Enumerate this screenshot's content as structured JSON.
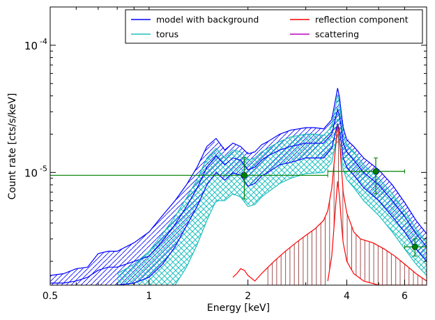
{
  "chart_data": {
    "type": "line",
    "xlabel": "Energy [keV]",
    "ylabel": "Count rate [cts/s/keV]",
    "x_scale": "log",
    "y_scale": "log",
    "xlim": [
      0.5,
      7.0
    ],
    "ylim": [
      1.3e-06,
      0.0002
    ],
    "x_ticks": [
      {
        "value": 0.5,
        "label": "0.5"
      },
      {
        "value": 1,
        "label": "1"
      },
      {
        "value": 2,
        "label": "2"
      },
      {
        "value": 4,
        "label": "4"
      },
      {
        "value": 6,
        "label": "6"
      }
    ],
    "y_ticks": [
      {
        "value": 1e-05,
        "base": "10",
        "exp": "-5"
      },
      {
        "value": 0.0001,
        "base": "10",
        "exp": "-4"
      }
    ],
    "legend_position": "top-right",
    "legend": [
      {
        "label": "model with background",
        "color": "#0000ff"
      },
      {
        "label": "reflection component",
        "color": "#ff0000"
      },
      {
        "label": "torus",
        "color": "#1fbfbf"
      },
      {
        "label": "scattering",
        "color": "#bf00bf"
      }
    ],
    "series": [
      {
        "name": "model with background",
        "color": "#0000ff",
        "bands": [
          {
            "x": [
              0.5,
              0.55,
              0.6,
              0.65,
              0.7,
              0.75,
              0.8,
              0.9,
              1.0,
              1.1,
              1.2,
              1.3,
              1.4,
              1.5,
              1.6,
              1.7,
              1.8,
              1.9,
              2.0,
              2.1,
              2.2,
              2.3,
              2.5,
              2.7,
              3.0,
              3.2,
              3.4,
              3.6,
              3.7,
              3.75,
              3.8,
              3.85,
              3.9,
              4.0,
              4.2,
              4.5,
              5.0,
              5.5,
              6.0,
              6.5,
              7.0
            ],
            "y": [
              1.55e-06,
              1.6e-06,
              1.75e-06,
              1.8e-06,
              2.3e-06,
              2.4e-06,
              2.4e-06,
              2.8e-06,
              3.4e-06,
              4.6e-06,
              6e-06,
              8e-06,
              1.1e-05,
              1.6e-05,
              1.85e-05,
              1.5e-05,
              1.7e-05,
              1.6e-05,
              1.4e-05,
              1.45e-05,
              1.65e-05,
              1.75e-05,
              2e-05,
              2.15e-05,
              2.25e-05,
              2.25e-05,
              2.2e-05,
              2.6e-05,
              3.8e-05,
              4.6e-05,
              3.9e-05,
              2.9e-05,
              2.25e-05,
              1.8e-05,
              1.6e-05,
              1.3e-05,
              1.05e-05,
              8e-06,
              5.8e-06,
              4.2e-06,
              3.3e-06
            ]
          },
          {
            "x": [
              0.5,
              0.55,
              0.6,
              0.65,
              0.7,
              0.75,
              0.8,
              0.9,
              1.0,
              1.1,
              1.2,
              1.3,
              1.4,
              1.5,
              1.6,
              1.7,
              1.8,
              1.9,
              2.0,
              2.1,
              2.2,
              2.3,
              2.5,
              2.7,
              3.0,
              3.2,
              3.4,
              3.6,
              3.7,
              3.75,
              3.8,
              3.85,
              3.9,
              4.0,
              4.2,
              4.5,
              5.0,
              5.5,
              6.0,
              6.5,
              7.0
            ],
            "y": [
              1.35e-06,
              1.35e-06,
              1.4e-06,
              1.5e-06,
              1.7e-06,
              1.8e-06,
              1.8e-06,
              2e-06,
              2.2e-06,
              2.9e-06,
              3.9e-06,
              5.4e-06,
              7.5e-06,
              1.1e-05,
              1.35e-05,
              1.15e-05,
              1.3e-05,
              1.25e-05,
              1.05e-05,
              1.1e-05,
              1.25e-05,
              1.35e-05,
              1.5e-05,
              1.6e-05,
              1.7e-05,
              1.7e-05,
              1.7e-05,
              2e-05,
              2.7e-05,
              3.1e-05,
              2.8e-05,
              2.2e-05,
              1.7e-05,
              1.45e-05,
              1.25e-05,
              1e-05,
              8e-06,
              6e-06,
              4.5e-06,
              3.3e-06,
              2.6e-06
            ]
          },
          {
            "x": [
              0.8,
              0.9,
              1.0,
              1.1,
              1.2,
              1.3,
              1.4,
              1.5,
              1.6,
              1.7,
              1.8,
              1.9,
              2.0,
              2.1,
              2.2,
              2.3,
              2.5,
              2.7,
              3.0,
              3.2,
              3.4,
              3.6,
              3.7,
              3.75,
              3.8,
              3.85,
              3.9,
              4.0,
              4.2,
              4.5,
              5.0,
              5.5,
              6.0,
              6.5,
              7.0
            ],
            "y": [
              1.3e-06,
              1.35e-06,
              1.5e-06,
              1.9e-06,
              2.6e-06,
              3.8e-06,
              5.4e-06,
              8e-06,
              1e-05,
              8.7e-06,
              9.9e-06,
              9.5e-06,
              7.8e-06,
              8.2e-06,
              9.4e-06,
              1e-05,
              1.15e-05,
              1.2e-05,
              1.3e-05,
              1.3e-05,
              1.3e-05,
              1.55e-05,
              2.1e-05,
              2.4e-05,
              2.15e-05,
              1.7e-05,
              1.3e-05,
              1.1e-05,
              9.5e-06,
              7.6e-06,
              6e-06,
              4.5e-06,
              3.4e-06,
              2.5e-06,
              2e-06
            ]
          }
        ]
      },
      {
        "name": "torus",
        "color": "#1fbfbf",
        "bands": [
          {
            "x": [
              0.8,
              0.9,
              1.0,
              1.1,
              1.2,
              1.3,
              1.4,
              1.5,
              1.6,
              1.7,
              1.8,
              1.9,
              2.0,
              2.1,
              2.2,
              2.3,
              2.5,
              2.7,
              3.0,
              3.2,
              3.4,
              3.6,
              3.7,
              3.75,
              3.8,
              3.85,
              3.9,
              4.0,
              4.2,
              4.5,
              5.0,
              5.5,
              6.0,
              6.5,
              7.0
            ],
            "y": [
              1.6e-06,
              1.9e-06,
              2.4e-06,
              3.3e-06,
              4.5e-06,
              6.3e-06,
              8.8e-06,
              1.3e-05,
              1.55e-05,
              1.3e-05,
              1.5e-05,
              1.45e-05,
              1.25e-05,
              1.3e-05,
              1.45e-05,
              1.55e-05,
              1.75e-05,
              1.9e-05,
              2e-05,
              2e-05,
              1.95e-05,
              2.3e-05,
              3.3e-05,
              4.1e-05,
              3.5e-05,
              2.6e-05,
              2e-05,
              1.65e-05,
              1.45e-05,
              1.15e-05,
              9e-06,
              6.8e-06,
              5e-06,
              3.6e-06,
              2.8e-06
            ]
          },
          {
            "x": [
              1.2,
              1.3,
              1.4,
              1.5,
              1.6,
              1.7,
              1.8,
              1.9,
              2.0,
              2.1,
              2.2,
              2.3,
              2.5,
              2.7,
              3.0,
              3.2,
              3.4,
              3.6,
              3.7,
              3.75,
              3.8,
              3.85,
              3.9,
              4.0,
              4.2,
              4.5,
              5.0,
              5.5,
              6.0,
              6.5,
              7.0
            ],
            "y": [
              1.3e-06,
              1.8e-06,
              2.7e-06,
              4.2e-06,
              6e-06,
              6e-06,
              6.8e-06,
              6.4e-06,
              5.4e-06,
              5.6e-06,
              6.4e-06,
              7e-06,
              8.2e-06,
              9e-06,
              9.8e-06,
              9.9e-06,
              1e-05,
              1.2e-05,
              1.7e-05,
              2e-05,
              1.75e-05,
              1.35e-05,
              1.05e-05,
              8.8e-06,
              7.6e-06,
              6e-06,
              4.6e-06,
              3.4e-06,
              2.5e-06,
              1.9e-06,
              1.55e-06
            ]
          }
        ]
      },
      {
        "name": "reflection component",
        "color": "#ff0000",
        "bands": [
          {
            "x": [
              1.8,
              1.85,
              1.9,
              1.95,
              2.0,
              2.1,
              2.2,
              2.4,
              2.6,
              2.8,
              3.0,
              3.2,
              3.4,
              3.5,
              3.6,
              3.7,
              3.75,
              3.8,
              3.85,
              3.9,
              4.0,
              4.2,
              4.4,
              4.8,
              5.2,
              5.6,
              6.0,
              6.5,
              7.0
            ],
            "y": [
              1.5e-06,
              1.6e-06,
              1.75e-06,
              1.7e-06,
              1.55e-06,
              1.4e-06,
              1.6e-06,
              2e-06,
              2.4e-06,
              2.8e-06,
              3.2e-06,
              3.6e-06,
              4.2e-06,
              5e-06,
              7.5e-06,
              1.6e-05,
              2.4e-05,
              1.8e-05,
              1.1e-05,
              7e-06,
              4.8e-06,
              3.4e-06,
              3e-06,
              2.8e-06,
              2.5e-06,
              2.2e-06,
              1.9e-06,
              1.6e-06,
              1.4e-06
            ]
          },
          {
            "x": [
              3.5,
              3.6,
              3.7,
              3.75,
              3.8,
              3.85,
              3.9,
              4.0,
              4.2,
              4.5,
              5.0,
              5.5,
              6.0,
              6.5,
              7.0
            ],
            "y": [
              1.4e-06,
              2.2e-06,
              5.5e-06,
              8.5e-06,
              6.5e-06,
              4e-06,
              2.8e-06,
              2e-06,
              1.6e-06,
              1.4e-06,
              1.3e-06,
              1.3e-06,
              1.3e-06,
              1.3e-06,
              1.3e-06
            ]
          }
        ]
      },
      {
        "name": "data",
        "color": "#008000",
        "points": [
          {
            "x": 1.95,
            "y": 9.5e-06,
            "xerr": [
              0.5,
              3.5
            ],
            "yerr": [
              6.2e-06,
              1.3e-05
            ]
          },
          {
            "x": 4.9,
            "y": 1.02e-05,
            "xerr": [
              3.5,
              6.0
            ],
            "yerr": [
              6.8e-06,
              1.3e-05
            ]
          },
          {
            "x": 6.45,
            "y": 2.6e-06,
            "xerr": [
              6.0,
              7.0
            ],
            "yerr": [
              2.2e-06,
              3e-06
            ]
          }
        ]
      }
    ]
  }
}
